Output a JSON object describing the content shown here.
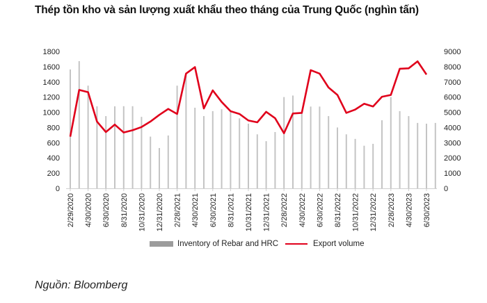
{
  "chart_data": {
    "type": "bar+line",
    "title": "Thép tồn kho và sản lượng xuất khẩu theo tháng của Trung Quốc (nghìn tấn)",
    "months": [
      "2/2020",
      "3/2020",
      "4/2020",
      "5/2020",
      "6/2020",
      "7/2020",
      "8/2020",
      "9/2020",
      "10/2020",
      "11/2020",
      "12/2020",
      "1/2021",
      "2/2021",
      "3/2021",
      "4/2021",
      "5/2021",
      "6/2021",
      "7/2021",
      "8/2021",
      "9/2021",
      "10/2021",
      "11/2021",
      "12/2021",
      "1/2022",
      "2/2022",
      "3/2022",
      "4/2022",
      "5/2022",
      "6/2022",
      "7/2022",
      "8/2022",
      "9/2022",
      "10/2022",
      "11/2022",
      "12/2022",
      "1/2023",
      "2/2023",
      "3/2023",
      "4/2023",
      "5/2023",
      "6/2023",
      "7/2023"
    ],
    "x_tick_labels": [
      "2/29/2020",
      "4/30/2020",
      "6/30/2020",
      "8/31/2020",
      "10/31/2020",
      "12/31/2020",
      "2/28/2021",
      "4/30/2021",
      "6/30/2021",
      "8/31/2021",
      "10/31/2021",
      "12/31/2021",
      "2/28/2022",
      "4/30/2022",
      "6/30/2022",
      "8/31/2022",
      "10/31/2022",
      "12/31/2022",
      "2/28/2023",
      "4/30/2023",
      "6/30/2023"
    ],
    "left_axis": {
      "ylim": [
        0,
        1800
      ],
      "ticks": [
        0,
        200,
        400,
        600,
        800,
        1000,
        1200,
        1400,
        1600,
        1800
      ]
    },
    "right_axis": {
      "ylim": [
        0,
        9000
      ],
      "ticks": [
        0,
        1000,
        2000,
        3000,
        4000,
        5000,
        6000,
        7000,
        8000,
        9000
      ]
    },
    "series": [
      {
        "name": "Inventory of Rebar and HRC",
        "type": "bar",
        "axis": "left",
        "color": "#c4c4c4",
        "legend_color": "#9c9c9c",
        "values": [
          1563,
          1672,
          1350,
          1078,
          950,
          1078,
          1080,
          1080,
          940,
          680,
          530,
          695,
          1350,
          1500,
          1060,
          950,
          1015,
          1040,
          1015,
          920,
          850,
          710,
          620,
          740,
          1200,
          1220,
          1010,
          1075,
          1075,
          950,
          800,
          710,
          650,
          560,
          585,
          895,
          1200,
          1015,
          950,
          860,
          850,
          860
        ]
      },
      {
        "name": "Export volume",
        "type": "line",
        "axis": "right",
        "color": "#e0001b",
        "values": [
          3400,
          6470,
          6320,
          4390,
          3700,
          4190,
          3670,
          3820,
          4030,
          4390,
          4830,
          5220,
          4890,
          7540,
          7970,
          5250,
          6440,
          5680,
          5070,
          4890,
          4460,
          4340,
          5030,
          4610,
          3620,
          4920,
          4960,
          7770,
          7540,
          6630,
          6140,
          4960,
          5180,
          5560,
          5380,
          6020,
          6140,
          7860,
          7890,
          8350,
          7480,
          null
        ]
      }
    ],
    "legend_position": "bottom",
    "grid": false
  },
  "source": "Nguồn: Bloomberg"
}
